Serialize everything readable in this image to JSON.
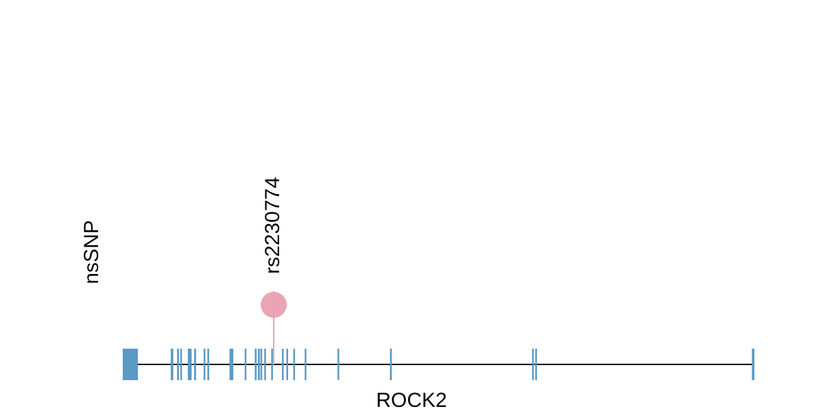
{
  "chart_data": {
    "type": "lollipop",
    "track_label": "nsSNP",
    "xlabel": "ROCK2",
    "xlim": [
      0,
      100
    ],
    "exons": [
      [
        0,
        2.4
      ],
      [
        7.6,
        8.0
      ],
      [
        8.6,
        8.9
      ],
      [
        9.1,
        9.3
      ],
      [
        10.3,
        10.9
      ],
      [
        11.3,
        11.6
      ],
      [
        12.8,
        13.0
      ],
      [
        13.4,
        13.6
      ],
      [
        16.9,
        17.5
      ],
      [
        19.3,
        19.5
      ],
      [
        20.9,
        21.2
      ],
      [
        21.4,
        21.7
      ],
      [
        21.8,
        22.0
      ],
      [
        22.4,
        22.5
      ],
      [
        23.5,
        23.7
      ],
      [
        25.2,
        25.4
      ],
      [
        25.9,
        26.1
      ],
      [
        27.0,
        27.2
      ],
      [
        28.8,
        29.0
      ],
      [
        34.0,
        34.2
      ],
      [
        42.3,
        42.6
      ],
      [
        64.8,
        65.0
      ],
      [
        65.3,
        65.5
      ],
      [
        99.6,
        100
      ]
    ],
    "exon_color": "#5b9ac4",
    "snps": [
      {
        "name": "rs2230774",
        "x": 23.9,
        "color": "#e8a0b0"
      }
    ]
  }
}
